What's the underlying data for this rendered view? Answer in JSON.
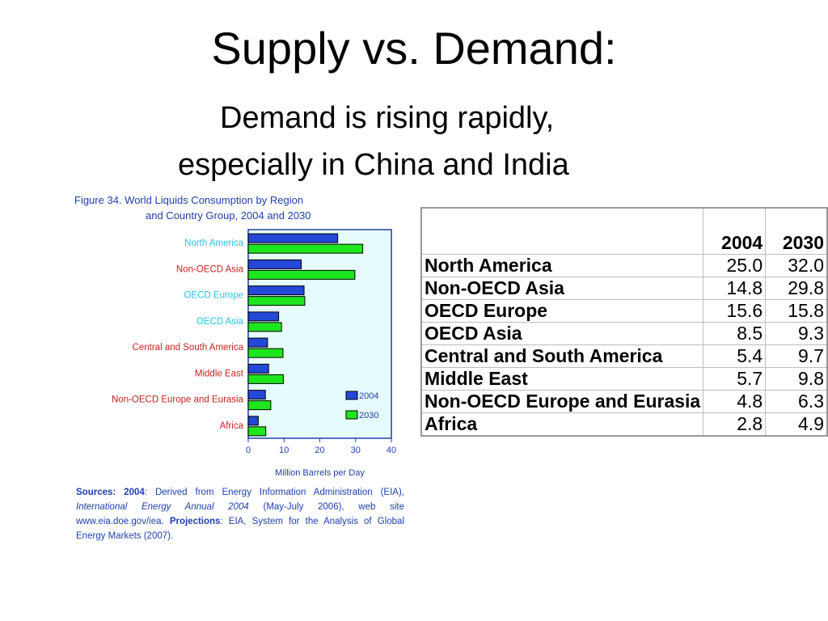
{
  "slide": {
    "title": "Supply vs. Demand:",
    "subtitle_line1": "Demand is rising rapidly,",
    "subtitle_line2": "especially in China and India"
  },
  "figure": {
    "label": "Figure 34.",
    "title_line1": "World Liquids Consumption by Region",
    "title_line2": "and Country Group, 2004 and 2030",
    "sources": {
      "prefix": "Sources:",
      "year2004": "2004",
      "text1": ": Derived from Energy Information Administration (EIA),",
      "publication": "International Energy Annual 2004",
      "text2": "(May-July 2006), web site www.eia.doe.gov/iea.",
      "projections": "Projections",
      "text3": ": EIA, System for the Analysis of Global Energy Markets (2007)."
    }
  },
  "colors": {
    "bar_2004": "#2448d8",
    "bar_2030": "#1ee61e",
    "plot_bg": "#e6fbfb",
    "axis": "#1f3fb0",
    "label_oecd": "#27c4e0",
    "label_nonoecd": "#cc2020"
  },
  "chart_data": {
    "type": "bar",
    "orientation": "horizontal",
    "categories": [
      "North America",
      "Non-OECD Asia",
      "OECD Europe",
      "OECD Asia",
      "Central and South America",
      "Middle East",
      "Non-OECD Europe and Eurasia",
      "Africa"
    ],
    "category_groups": [
      "oecd",
      "nonoecd",
      "oecd",
      "oecd",
      "nonoecd",
      "nonoecd",
      "nonoecd",
      "nonoecd"
    ],
    "series": [
      {
        "name": "2004",
        "values": [
          25.0,
          14.8,
          15.6,
          8.5,
          5.4,
          5.7,
          4.8,
          2.8
        ]
      },
      {
        "name": "2030",
        "values": [
          32.0,
          29.8,
          15.8,
          9.3,
          9.7,
          9.8,
          6.3,
          4.9
        ]
      }
    ],
    "xlabel": "Million Barrels per Day",
    "xlim": [
      0,
      40
    ],
    "xticks": [
      0,
      10,
      20,
      30,
      40
    ],
    "legend_position": "bottom-right"
  },
  "table": {
    "headers": [
      "",
      "2004",
      "2030"
    ],
    "rows": [
      {
        "region": "North America",
        "v2004": "25.0",
        "v2030": "32.0"
      },
      {
        "region": "Non-OECD Asia",
        "v2004": "14.8",
        "v2030": "29.8"
      },
      {
        "region": "OECD Europe",
        "v2004": "15.6",
        "v2030": "15.8"
      },
      {
        "region": "OECD Asia",
        "v2004": "8.5",
        "v2030": "9.3"
      },
      {
        "region": "Central and South America",
        "v2004": "5.4",
        "v2030": "9.7"
      },
      {
        "region": "Middle East",
        "v2004": "5.7",
        "v2030": "9.8"
      },
      {
        "region": "Non-OECD Europe and Eurasia",
        "v2004": "4.8",
        "v2030": "6.3"
      },
      {
        "region": "Africa",
        "v2004": "2.8",
        "v2030": "4.9"
      }
    ]
  }
}
